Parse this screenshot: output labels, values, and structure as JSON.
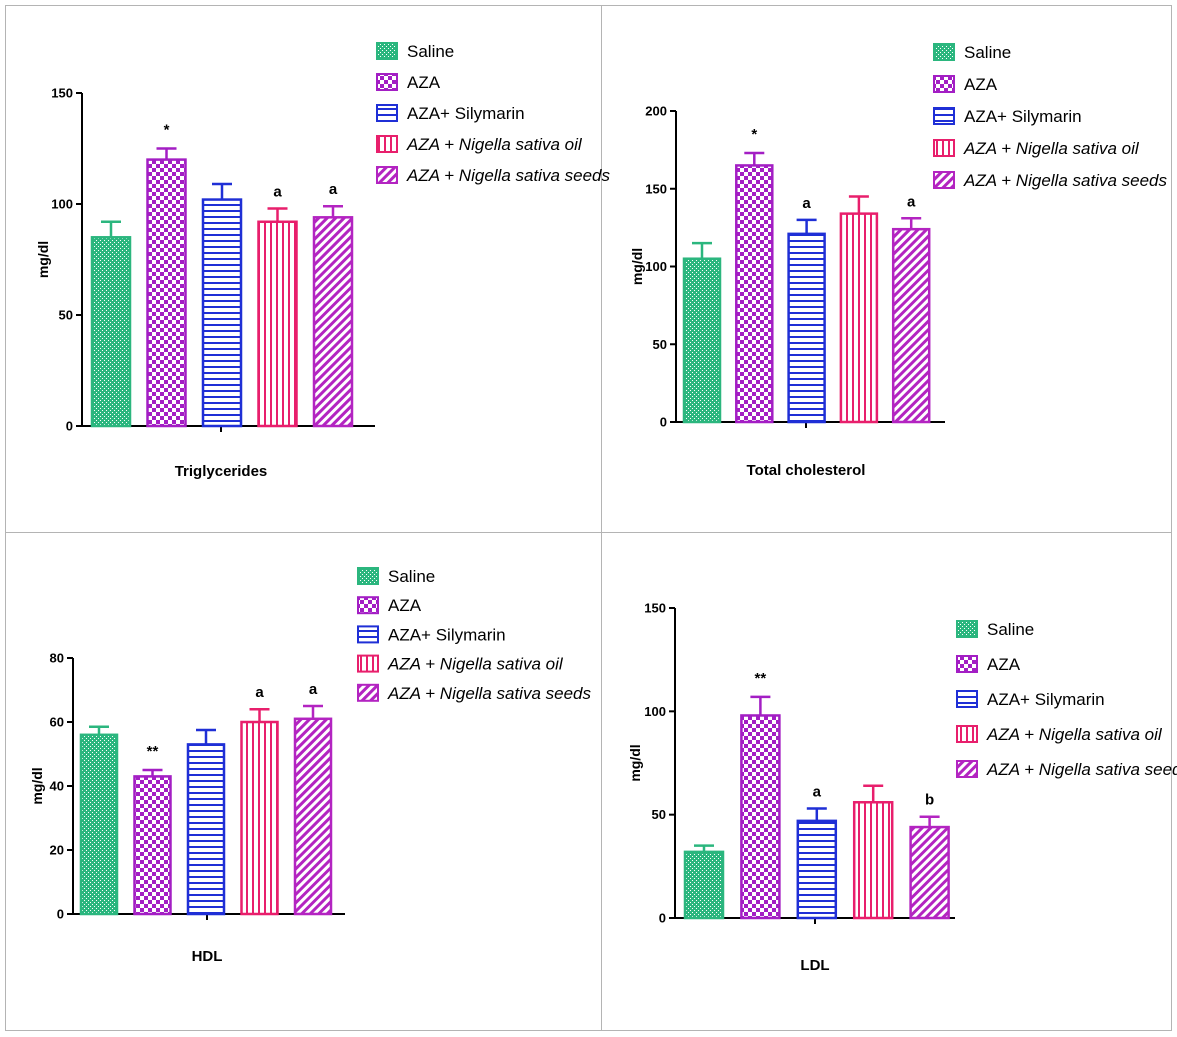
{
  "series_names": [
    "Saline",
    "AZA",
    "AZA+ Silymarin",
    "AZA + Nigella sativa oil",
    "AZA + Nigella sativa seeds"
  ],
  "legend": {
    "labels": [
      "Saline",
      "AZA",
      "AZA+ Silymarin",
      "AZA + Nigella sativa oil",
      "AZA + Nigella sativa seeds"
    ],
    "italic": [
      false,
      false,
      false,
      true,
      true
    ]
  },
  "colors": {
    "saline": "#2bb67e",
    "aza": "#a31ec4",
    "silymarin": "#1f2fd6",
    "oil": "#e81f6c",
    "seeds": "#b324c1",
    "grid_border": "#b4b4b4"
  },
  "pattern_names": [
    "crosshatch-dots",
    "checkerboard",
    "horizontal-stripes",
    "vertical-stripes",
    "diagonal-stripes"
  ],
  "chart_data": [
    {
      "type": "bar",
      "title": "",
      "xlabel": "Triglycerides",
      "ylabel": "mg/dl",
      "ylim": [
        0,
        150
      ],
      "yticks": [
        0,
        50,
        100,
        150
      ],
      "categories": [
        "Saline",
        "AZA",
        "AZA+ Silymarin",
        "AZA + Nigella sativa oil",
        "AZA + Nigella sativa seeds"
      ],
      "values": [
        85,
        120,
        102,
        92,
        94
      ],
      "errors": [
        7,
        5,
        7,
        6,
        5
      ],
      "annotations": [
        "",
        "*",
        "",
        "a",
        "a"
      ],
      "legend_position": "top-right"
    },
    {
      "type": "bar",
      "title": "",
      "xlabel": "Total cholesterol",
      "ylabel": "mg/dl",
      "ylim": [
        0,
        200
      ],
      "yticks": [
        0,
        50,
        100,
        150,
        200
      ],
      "categories": [
        "Saline",
        "AZA",
        "AZA+ Silymarin",
        "AZA + Nigella sativa oil",
        "AZA + Nigella sativa seeds"
      ],
      "values": [
        105,
        165,
        121,
        134,
        124
      ],
      "errors": [
        10,
        8,
        9,
        11,
        7
      ],
      "annotations": [
        "",
        "*",
        "a",
        "",
        "a"
      ],
      "legend_position": "top-right"
    },
    {
      "type": "bar",
      "title": "",
      "xlabel": "HDL",
      "ylabel": "mg/dl",
      "ylim": [
        0,
        80
      ],
      "yticks": [
        0,
        20,
        40,
        60,
        80
      ],
      "categories": [
        "Saline",
        "AZA",
        "AZA+ Silymarin",
        "AZA + Nigella sativa oil",
        "AZA + Nigella sativa seeds"
      ],
      "values": [
        56,
        43,
        53,
        60,
        61
      ],
      "errors": [
        2.5,
        2,
        4.5,
        4,
        4
      ],
      "annotations": [
        "",
        "**",
        "",
        "a",
        "a"
      ],
      "legend_position": "top-right"
    },
    {
      "type": "bar",
      "title": "",
      "xlabel": "LDL",
      "ylabel": "mg/dl",
      "ylim": [
        0,
        150
      ],
      "yticks": [
        0,
        50,
        100,
        150
      ],
      "categories": [
        "Saline",
        "AZA",
        "AZA+ Silymarin",
        "AZA + Nigella sativa oil",
        "AZA + Nigella sativa seeds"
      ],
      "values": [
        32,
        98,
        47,
        56,
        44
      ],
      "errors": [
        3,
        9,
        6,
        8,
        5
      ],
      "annotations": [
        "",
        "**",
        "a",
        "",
        "b"
      ],
      "legend_position": "right"
    }
  ]
}
